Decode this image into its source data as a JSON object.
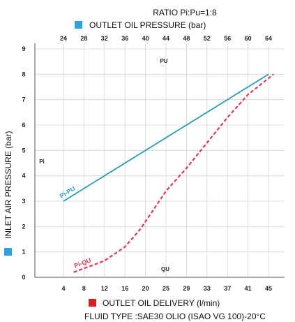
{
  "chart_data": {
    "type": "line",
    "title": "RATIO Pi:Pu=1:8",
    "ylabel": "INLET AIR PRESSURE (bar)",
    "ylim": [
      0,
      9
    ],
    "y_ticks": [
      "0",
      "1",
      "2",
      "3",
      "4",
      "5",
      "6",
      "7",
      "8",
      "9"
    ],
    "x_top_label": "OUTLET OIL PRESSURE (bar)",
    "x_top_ticks": [
      "24",
      "28",
      "32",
      "36",
      "40",
      "44",
      "48",
      "52",
      "56",
      "60",
      "64"
    ],
    "xlabel": "OUTLET OIL DELIVERY (l/min)",
    "x_bottom_ticks": [
      "4",
      "8",
      "12",
      "16",
      "20",
      "25",
      "29",
      "33",
      "37",
      "41",
      "45"
    ],
    "footnote": "FLUID TYPE :SAE30 OLIO (ISAO VG 100)-20°C",
    "axis_tags": {
      "pu": "PU",
      "pi": "Pi",
      "qu": "QU"
    },
    "grid": true,
    "series": [
      {
        "name": "Pi-PU",
        "axis": "top",
        "color": "#2a9bb0",
        "dash": false,
        "points": [
          [
            24,
            3.0
          ],
          [
            64,
            8.0
          ]
        ]
      },
      {
        "name": "Pi-QU",
        "axis": "bottom",
        "color": "#e0385a",
        "dash": true,
        "points": [
          [
            6,
            0.2
          ],
          [
            8,
            0.35
          ],
          [
            12,
            0.65
          ],
          [
            16,
            1.2
          ],
          [
            19,
            1.9
          ],
          [
            25,
            3.4
          ],
          [
            29,
            4.3
          ],
          [
            33,
            5.3
          ],
          [
            37,
            6.3
          ],
          [
            41,
            7.2
          ],
          [
            46,
            8.0
          ]
        ]
      }
    ]
  },
  "legend_colors": {
    "top": "#29a3e0",
    "left": "#29a3e0",
    "bottom": "#d81e1e"
  }
}
